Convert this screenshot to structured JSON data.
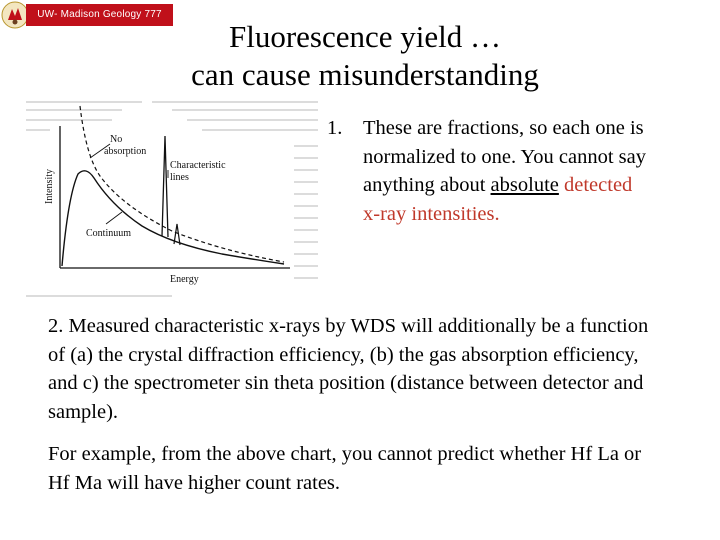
{
  "header": {
    "label": "UW- Madison Geology  777"
  },
  "slide": {
    "title_line1": "Fluorescence yield …",
    "title_line2": "can cause misunderstanding"
  },
  "figure": {
    "labels": {
      "no_absorption_1": "No",
      "no_absorption_2": "absorption",
      "characteristic_1": "Characteristic",
      "characteristic_2": "lines",
      "continuum": "Continuum",
      "y_axis": "Intensity",
      "x_axis": "Energy"
    }
  },
  "point1": {
    "number": "1.",
    "text_a": "These are fractions, so each one is normalized to one. You cannot say anything about ",
    "text_underlined": "absolute",
    "text_red": " detected x-ray intensities."
  },
  "point2": {
    "text": "2. Measured characteristic x-rays by WDS will additionally be a function of (a) the crystal diffraction efficiency, (b) the gas absorption efficiency, and c) the spectrometer sin theta position (distance between detector and sample)."
  },
  "point3": {
    "text": "For example, from the above chart, you cannot predict whether Hf La or Hf Ma will have higher count rates."
  }
}
